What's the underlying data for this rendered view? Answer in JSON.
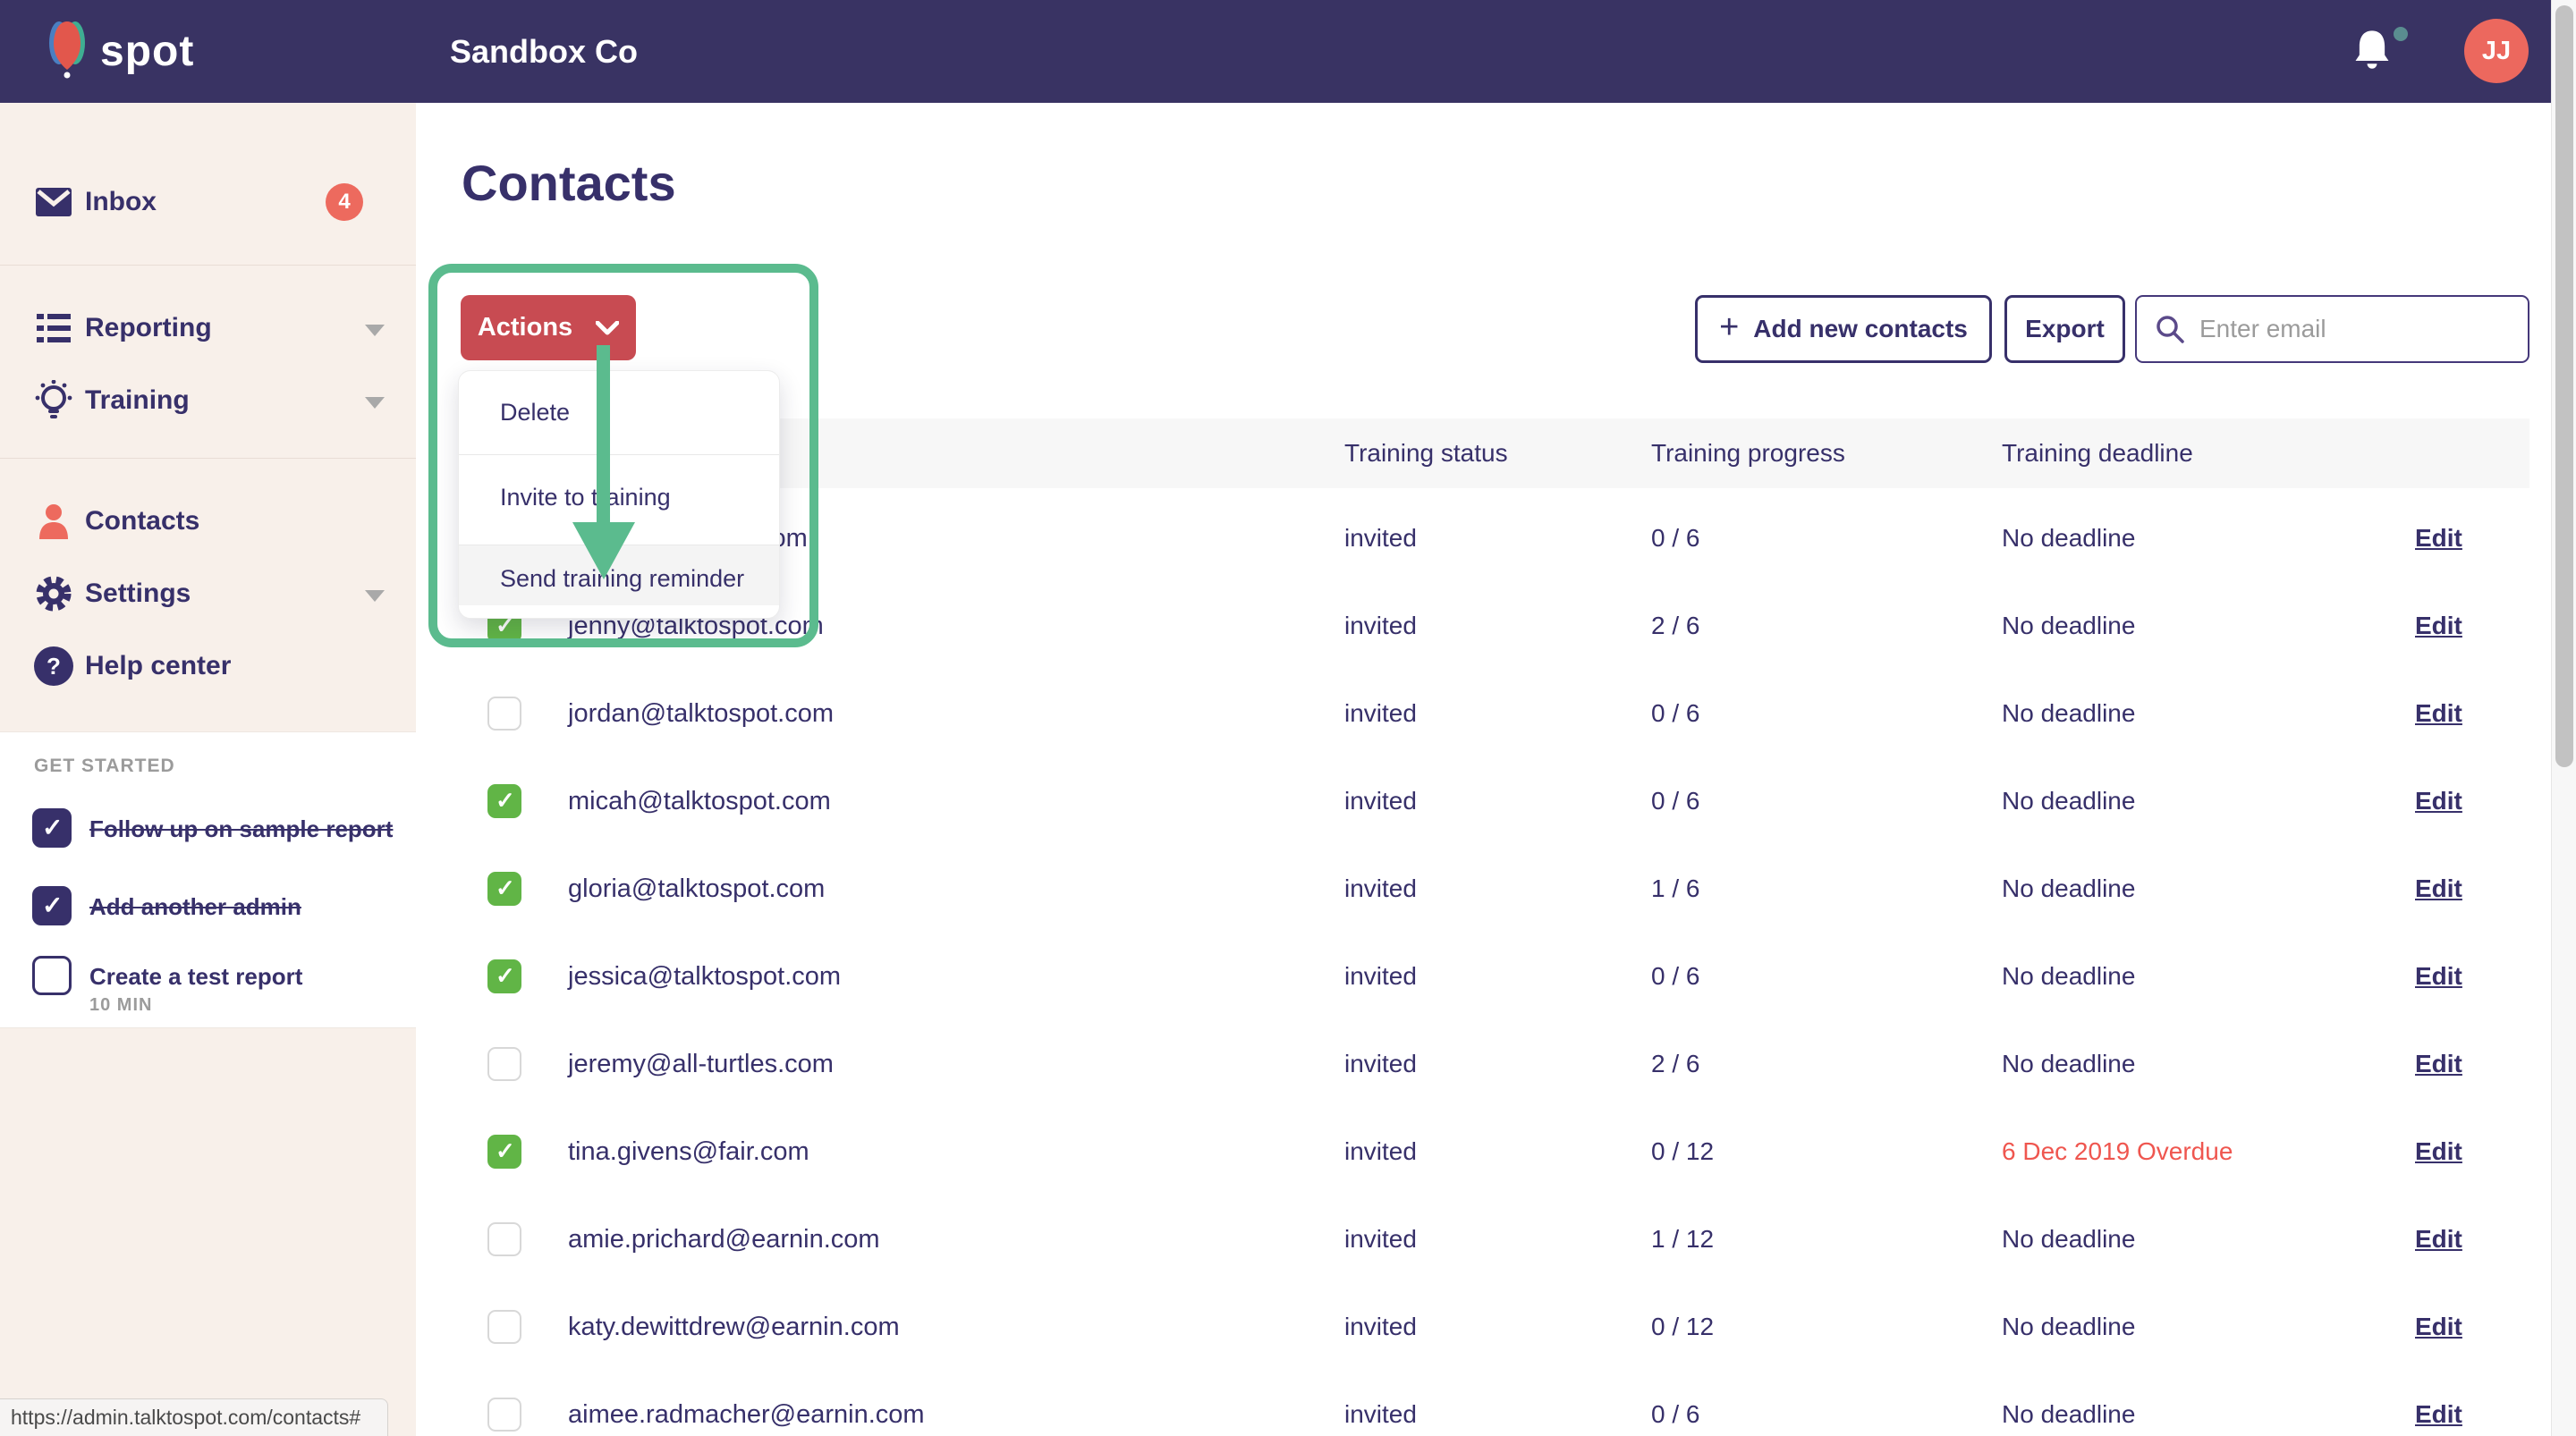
{
  "topbar": {
    "brand": "spot",
    "company": "Sandbox Co",
    "avatar_initials": "JJ"
  },
  "sidebar": {
    "items": [
      {
        "label": "Inbox",
        "icon": "mail-icon",
        "badge": "4"
      },
      {
        "label": "Reporting",
        "icon": "list-icon",
        "chevron": true
      },
      {
        "label": "Training",
        "icon": "lightbulb-icon",
        "chevron": true
      },
      {
        "label": "Contacts",
        "icon": "person-icon",
        "active": true
      },
      {
        "label": "Settings",
        "icon": "gear-icon",
        "chevron": true
      },
      {
        "label": "Help center",
        "icon": "question-icon"
      }
    ],
    "get_started": {
      "title": "GET STARTED",
      "tasks": [
        {
          "label": "Follow up on sample report",
          "checked": true,
          "strikethrough": true
        },
        {
          "label": "Add another admin",
          "checked": true,
          "strikethrough": true
        },
        {
          "label": "Create a test report",
          "sub": "10 MIN",
          "checked": false,
          "strikethrough": false
        }
      ]
    }
  },
  "page": {
    "title": "Contacts"
  },
  "toolbar": {
    "add_label": "Add new contacts",
    "plus_icon": "+",
    "export_label": "Export",
    "search_placeholder": "Enter email"
  },
  "actions_menu": {
    "button_label": "Actions",
    "items": [
      "Delete",
      "Invite to training",
      "Send training reminder"
    ],
    "highlighted_item": "Send training reminder"
  },
  "table": {
    "columns": [
      "Training status",
      "Training progress",
      "Training deadline"
    ],
    "edit_label": "Edit",
    "rows": [
      {
        "email_visible": "com",
        "checkbox": "hidden",
        "status": "invited",
        "progress": "0 / 6",
        "deadline": "No deadline",
        "overdue": false
      },
      {
        "email": "jenny@talktospot.com",
        "checkbox": true,
        "status": "invited",
        "progress": "2 / 6",
        "deadline": "No deadline",
        "overdue": false
      },
      {
        "email": "jordan@talktospot.com",
        "checkbox": false,
        "status": "invited",
        "progress": "0 / 6",
        "deadline": "No deadline",
        "overdue": false
      },
      {
        "email": "micah@talktospot.com",
        "checkbox": true,
        "status": "invited",
        "progress": "0 / 6",
        "deadline": "No deadline",
        "overdue": false
      },
      {
        "email": "gloria@talktospot.com",
        "checkbox": true,
        "status": "invited",
        "progress": "1 / 6",
        "deadline": "No deadline",
        "overdue": false
      },
      {
        "email": "jessica@talktospot.com",
        "checkbox": true,
        "status": "invited",
        "progress": "0 / 6",
        "deadline": "No deadline",
        "overdue": false
      },
      {
        "email": "jeremy@all-turtles.com",
        "checkbox": false,
        "status": "invited",
        "progress": "2 / 6",
        "deadline": "No deadline",
        "overdue": false
      },
      {
        "email": "tina.givens@fair.com",
        "checkbox": true,
        "status": "invited",
        "progress": "0 / 12",
        "deadline": "6 Dec 2019 Overdue",
        "overdue": true
      },
      {
        "email": "amie.prichard@earnin.com",
        "checkbox": false,
        "status": "invited",
        "progress": "1 / 12",
        "deadline": "No deadline",
        "overdue": false
      },
      {
        "email": "katy.dewittdrew@earnin.com",
        "checkbox": false,
        "status": "invited",
        "progress": "0 / 12",
        "deadline": "No deadline",
        "overdue": false
      },
      {
        "email": "aimee.radmacher@earnin.com",
        "checkbox": false,
        "status": "invited",
        "progress": "0 / 6",
        "deadline": "No deadline",
        "overdue": false
      }
    ]
  },
  "status_bar": {
    "url": "https://admin.talktospot.com/contacts#"
  },
  "colors": {
    "topbar": "#393363",
    "sidebar_bg": "#f8f0ea",
    "navy_text": "#37306a",
    "coral": "#ec685e",
    "actions_red": "#c84b52",
    "annotation_green": "#5bbb8e",
    "checkbox_green": "#61b546",
    "overdue_red": "#ef564f",
    "header_band": "#f7f7f7"
  }
}
